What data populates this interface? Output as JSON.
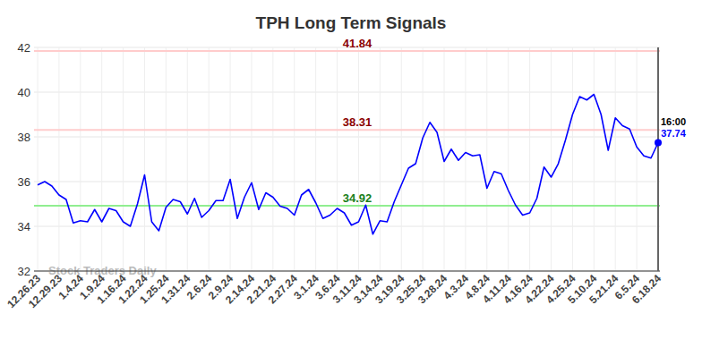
{
  "chart_data": {
    "type": "line",
    "title": "TPH Long Term Signals",
    "categories": [
      "12.26.23",
      null,
      null,
      "12.29.23",
      null,
      null,
      "1.4.24",
      null,
      null,
      "1.9.24",
      null,
      null,
      "1.16.24",
      null,
      null,
      "1.22.24",
      null,
      null,
      "1.25.24",
      null,
      null,
      "1.31.24",
      null,
      null,
      "2.6.24",
      null,
      null,
      "2.9.24",
      null,
      null,
      "2.14.24",
      null,
      null,
      "2.21.24",
      null,
      null,
      "2.27.24",
      null,
      null,
      "3.1.24",
      null,
      null,
      "3.6.24",
      null,
      null,
      "3.11.24",
      null,
      null,
      "3.14.24",
      null,
      null,
      "3.19.24",
      null,
      null,
      "3.25.24",
      null,
      null,
      "3.28.24",
      null,
      null,
      "4.3.24",
      null,
      null,
      "4.8.24",
      null,
      null,
      "4.11.24",
      null,
      null,
      "4.16.24",
      null,
      null,
      "4.22.24",
      null,
      null,
      "4.25.24",
      null,
      null,
      "5.10.24",
      null,
      null,
      "5.21.24",
      null,
      null,
      "6.5.24",
      null,
      null,
      "6.18.24"
    ],
    "values": [
      35.85,
      36.0,
      35.8,
      35.4,
      35.2,
      34.15,
      34.25,
      34.2,
      34.75,
      34.2,
      34.8,
      34.7,
      34.2,
      34.0,
      35.0,
      36.3,
      34.2,
      33.8,
      34.85,
      35.2,
      35.1,
      34.55,
      35.25,
      34.4,
      34.7,
      35.15,
      35.15,
      36.1,
      34.35,
      35.3,
      35.95,
      34.75,
      35.5,
      35.3,
      34.9,
      34.8,
      34.5,
      35.4,
      35.65,
      35.05,
      34.35,
      34.5,
      34.8,
      34.6,
      34.05,
      34.2,
      34.95,
      33.65,
      34.25,
      34.2,
      35.1,
      35.85,
      36.6,
      36.8,
      37.95,
      38.65,
      38.2,
      36.9,
      37.45,
      36.95,
      37.3,
      37.15,
      37.2,
      35.7,
      36.45,
      36.35,
      35.6,
      34.95,
      34.5,
      34.6,
      35.25,
      36.65,
      36.2,
      36.8,
      37.85,
      39.0,
      39.8,
      39.65,
      39.9,
      39.0,
      37.4,
      38.85,
      38.5,
      38.35,
      37.55,
      37.15,
      37.05,
      37.74
    ],
    "color": "#0000ff",
    "ylim": [
      32,
      42
    ],
    "yticks": [
      32,
      34,
      36,
      38,
      40,
      42
    ],
    "grid": true,
    "reference_lines": [
      {
        "value": 41.84,
        "label": "41.84",
        "color": "#8b0000"
      },
      {
        "value": 38.31,
        "label": "38.31",
        "color": "#8b0000"
      },
      {
        "value": 34.92,
        "label": "34.92",
        "color": "#1a7f1a"
      }
    ],
    "last_point_time": "16:00",
    "watermark": "Stock Traders Daily"
  }
}
